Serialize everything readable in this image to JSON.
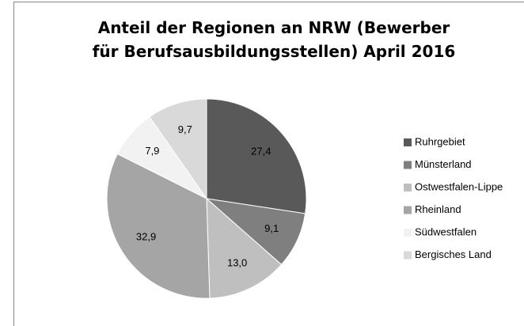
{
  "chart_data": {
    "type": "pie",
    "title": "Anteil der Regionen an NRW (Bewerber für Berufsausbildungsstellen)  April 2016",
    "categories": [
      "Ruhrgebiet",
      "Münsterland",
      "Ostwestfalen-Lippe",
      "Rheinland",
      "Südwestfalen",
      "Bergisches Land"
    ],
    "values": [
      27.4,
      9.1,
      13.0,
      32.9,
      7.9,
      9.7
    ],
    "value_labels": [
      "27,4",
      "9,1",
      "13,0",
      "32,9",
      "7,9",
      "9,7"
    ],
    "colors": [
      "#595959",
      "#7f7f7f",
      "#bfbfbf",
      "#a5a5a5",
      "#f2f2f2",
      "#d9d9d9"
    ],
    "legend": "right"
  }
}
